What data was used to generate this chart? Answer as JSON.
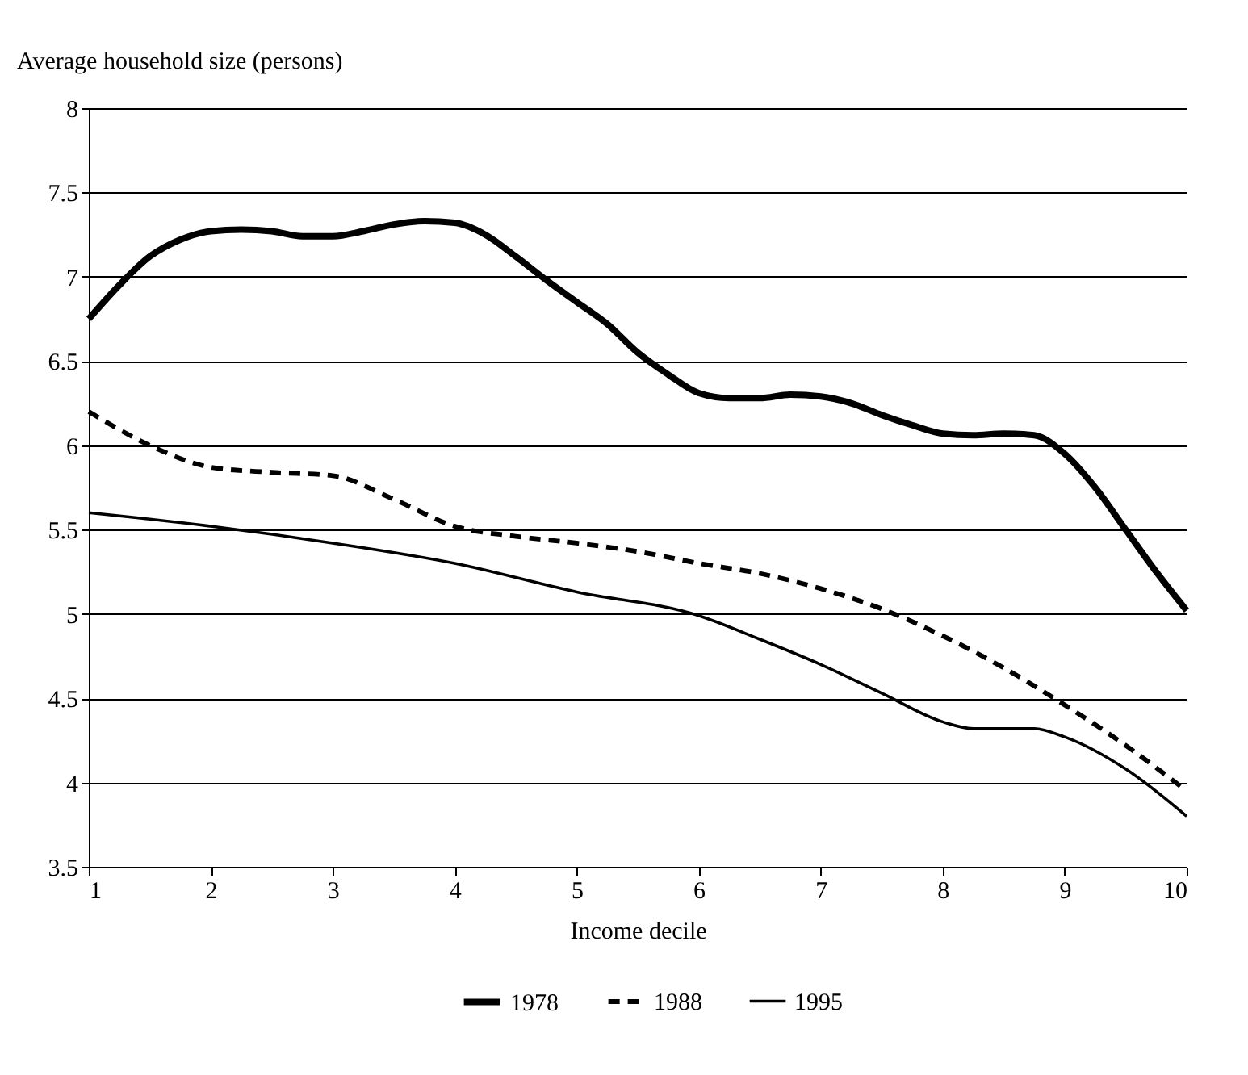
{
  "chart_data": {
    "type": "line",
    "xlabel": "Income decile",
    "ylabel": "Average household size (persons)",
    "xlim": [
      1,
      10
    ],
    "xticks": [
      1,
      2,
      3,
      4,
      5,
      6,
      7,
      8,
      9,
      10
    ],
    "ylim": [
      3.5,
      8
    ],
    "yticks": [
      3.5,
      4,
      4.5,
      5,
      5.5,
      6,
      6.5,
      7,
      7.5,
      8
    ],
    "grid": "y",
    "legend": "bottom",
    "marker": "none",
    "series": [
      {
        "name": "1978",
        "color": "#000000",
        "line_style": "solid",
        "x": [
          1,
          1.25,
          1.5,
          1.75,
          2,
          2.25,
          2.5,
          2.75,
          3,
          3.25,
          3.5,
          3.75,
          4,
          4.25,
          4.5,
          4.75,
          5,
          5.25,
          5.5,
          5.75,
          6,
          6.25,
          6.5,
          6.75,
          7,
          7.25,
          7.5,
          7.75,
          8,
          8.25,
          8.5,
          8.75,
          9,
          9.25,
          9.5,
          9.75,
          10
        ],
        "values": [
          6.75,
          6.95,
          7.12,
          7.22,
          7.27,
          7.28,
          7.27,
          7.24,
          7.24,
          7.27,
          7.31,
          7.33,
          7.32,
          7.25,
          7.12,
          6.98,
          6.85,
          6.72,
          6.55,
          6.42,
          6.31,
          6.28,
          6.28,
          6.3,
          6.29,
          6.25,
          6.18,
          6.12,
          6.07,
          6.06,
          6.07,
          6.06,
          5.95,
          5.75,
          5.5,
          5.25,
          5.02
        ]
      },
      {
        "name": "1988",
        "color": "#000000",
        "line_style": "dashed",
        "x": [
          1,
          1.5,
          2,
          2.5,
          3,
          3.5,
          4,
          4.5,
          5,
          5.5,
          6,
          6.5,
          7,
          7.5,
          8,
          8.5,
          9,
          9.5,
          10
        ],
        "values": [
          6.2,
          6.0,
          5.87,
          5.84,
          5.82,
          5.68,
          5.52,
          5.46,
          5.42,
          5.37,
          5.3,
          5.24,
          5.15,
          5.03,
          4.87,
          4.68,
          4.46,
          4.22,
          3.95
        ]
      },
      {
        "name": "1995",
        "color": "#000000",
        "line_style": "solid",
        "x": [
          1,
          2,
          3,
          4,
          5,
          6,
          6.5,
          7,
          7.5,
          8,
          8.25,
          8.5,
          8.75,
          9,
          9.5,
          10
        ],
        "values": [
          5.6,
          5.52,
          5.42,
          5.3,
          5.13,
          4.99,
          4.85,
          4.7,
          4.53,
          4.36,
          4.32,
          4.32,
          4.32,
          4.27,
          4.08,
          3.8
        ]
      }
    ]
  }
}
